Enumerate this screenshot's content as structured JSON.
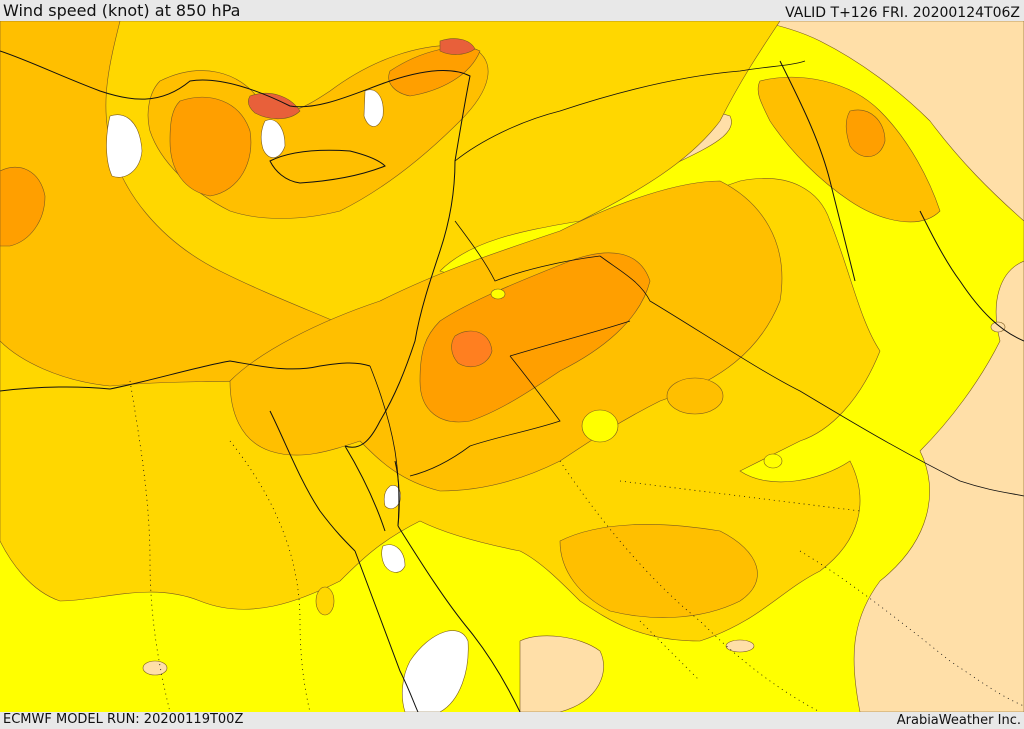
{
  "header": {
    "title": "Wind speed (knot) at 850 hPa",
    "valid": "VALID T+126 FRI. 20200124T06Z"
  },
  "footer": {
    "model_run": "ECMWF MODEL RUN: 20200119T00Z",
    "credit": "ArabiaWeather Inc."
  },
  "palette": {
    "white": "#ffffff",
    "light_tan": "#ffdfa8",
    "yellow": "#ffff00",
    "gold": "#ffd700",
    "amber": "#ffbf00",
    "orange": "#ff9f00",
    "dark_orange": "#ff7f20",
    "red_orange": "#e8603a",
    "contour": "#7a5a20",
    "border": "#111111"
  }
}
